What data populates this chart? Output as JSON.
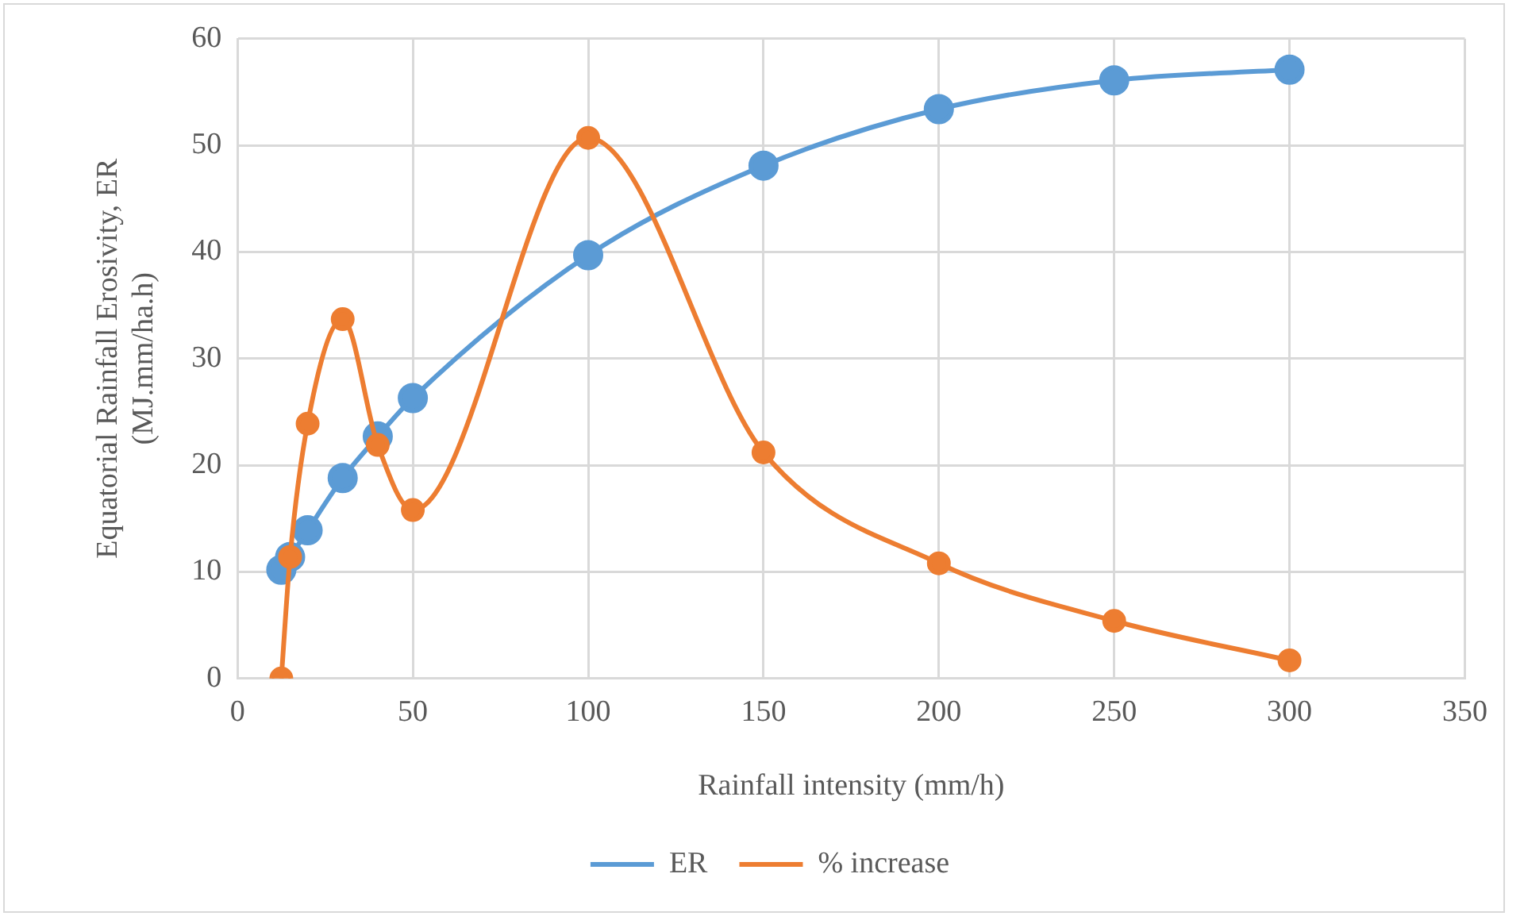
{
  "chart_data": {
    "type": "line",
    "xlabel": "Rainfall intensity (mm/h)",
    "ylabel": "Equatorial Rainfall Erosivity, ER\n(MJ.mm/ha.h)",
    "xlim": [
      0,
      350
    ],
    "xticks": [
      0,
      50,
      100,
      150,
      200,
      250,
      300,
      350
    ],
    "ylim": [
      0,
      60
    ],
    "yticks": [
      0,
      10,
      20,
      30,
      40,
      50,
      60
    ],
    "grid": true,
    "legend": "bottom",
    "marker": "circle",
    "line_style": "solid",
    "series": [
      {
        "name": "ER",
        "color": "#5b9bd5",
        "x": [
          12.5,
          15,
          20,
          30,
          40,
          50,
          100,
          150,
          200,
          250,
          300
        ],
        "values": [
          10.2,
          11.4,
          13.9,
          18.8,
          22.7,
          26.3,
          39.7,
          48.1,
          53.4,
          56.1,
          57.1
        ]
      },
      {
        "name": "% increase",
        "color": "#ed7d31",
        "x": [
          12.5,
          15,
          20,
          30,
          40,
          50,
          100,
          150,
          200,
          250,
          300
        ],
        "values": [
          0,
          11.4,
          23.9,
          33.7,
          21.9,
          15.8,
          50.7,
          21.2,
          10.8,
          5.4,
          1.7
        ]
      }
    ]
  }
}
